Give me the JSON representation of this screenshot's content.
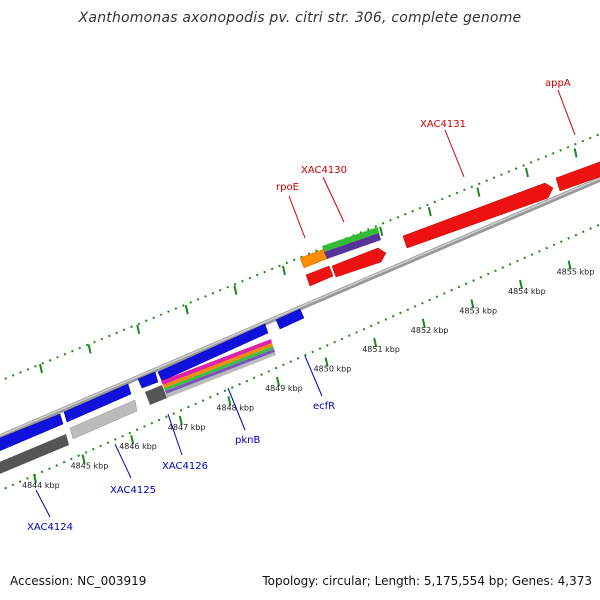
{
  "title": "Xanthomonas axonopodis pv. citri str. 306, complete genome",
  "footer": {
    "accession": "Accession: NC_003919",
    "summary": "Topology: circular; Length: 5,175,554 bp; Genes: 4,373"
  },
  "colors": {
    "forward_gene": "#ee1111",
    "reverse_gene": "#1111dd",
    "backbone": "#999999",
    "tick": "#1a8a1a",
    "forward_label": "#cc0000",
    "reverse_label": "#0000bb"
  },
  "axis": {
    "unit": "kbp",
    "ticks": [
      {
        "kbp": 4844,
        "label": "4844 kbp"
      },
      {
        "kbp": 4845,
        "label": "4845 kbp"
      },
      {
        "kbp": 4846,
        "label": "4846 kbp"
      },
      {
        "kbp": 4847,
        "label": "4847 kbp"
      },
      {
        "kbp": 4848,
        "label": "4848 kbp"
      },
      {
        "kbp": 4849,
        "label": "4849 kbp"
      },
      {
        "kbp": 4850,
        "label": "4850 kbp"
      },
      {
        "kbp": 4851,
        "label": "4851 kbp"
      },
      {
        "kbp": 4852,
        "label": "4852 kbp"
      },
      {
        "kbp": 4853,
        "label": "4853 kbp"
      },
      {
        "kbp": 4854,
        "label": "4854 kbp"
      },
      {
        "kbp": 4855,
        "label": "4855 kbp"
      }
    ]
  },
  "genes": {
    "forward": [
      {
        "id": "rpoE",
        "label": "rpoE"
      },
      {
        "id": "XAC4130",
        "label": "XAC4130"
      },
      {
        "id": "XAC4131",
        "label": "XAC4131"
      },
      {
        "id": "appA",
        "label": "appA"
      }
    ],
    "reverse": [
      {
        "id": "XAC4124",
        "label": "XAC4124"
      },
      {
        "id": "XAC4125",
        "label": "XAC4125"
      },
      {
        "id": "XAC4126",
        "label": "XAC4126"
      },
      {
        "id": "pknB",
        "label": "pknB"
      },
      {
        "id": "ecfR",
        "label": "ecfR"
      }
    ]
  }
}
